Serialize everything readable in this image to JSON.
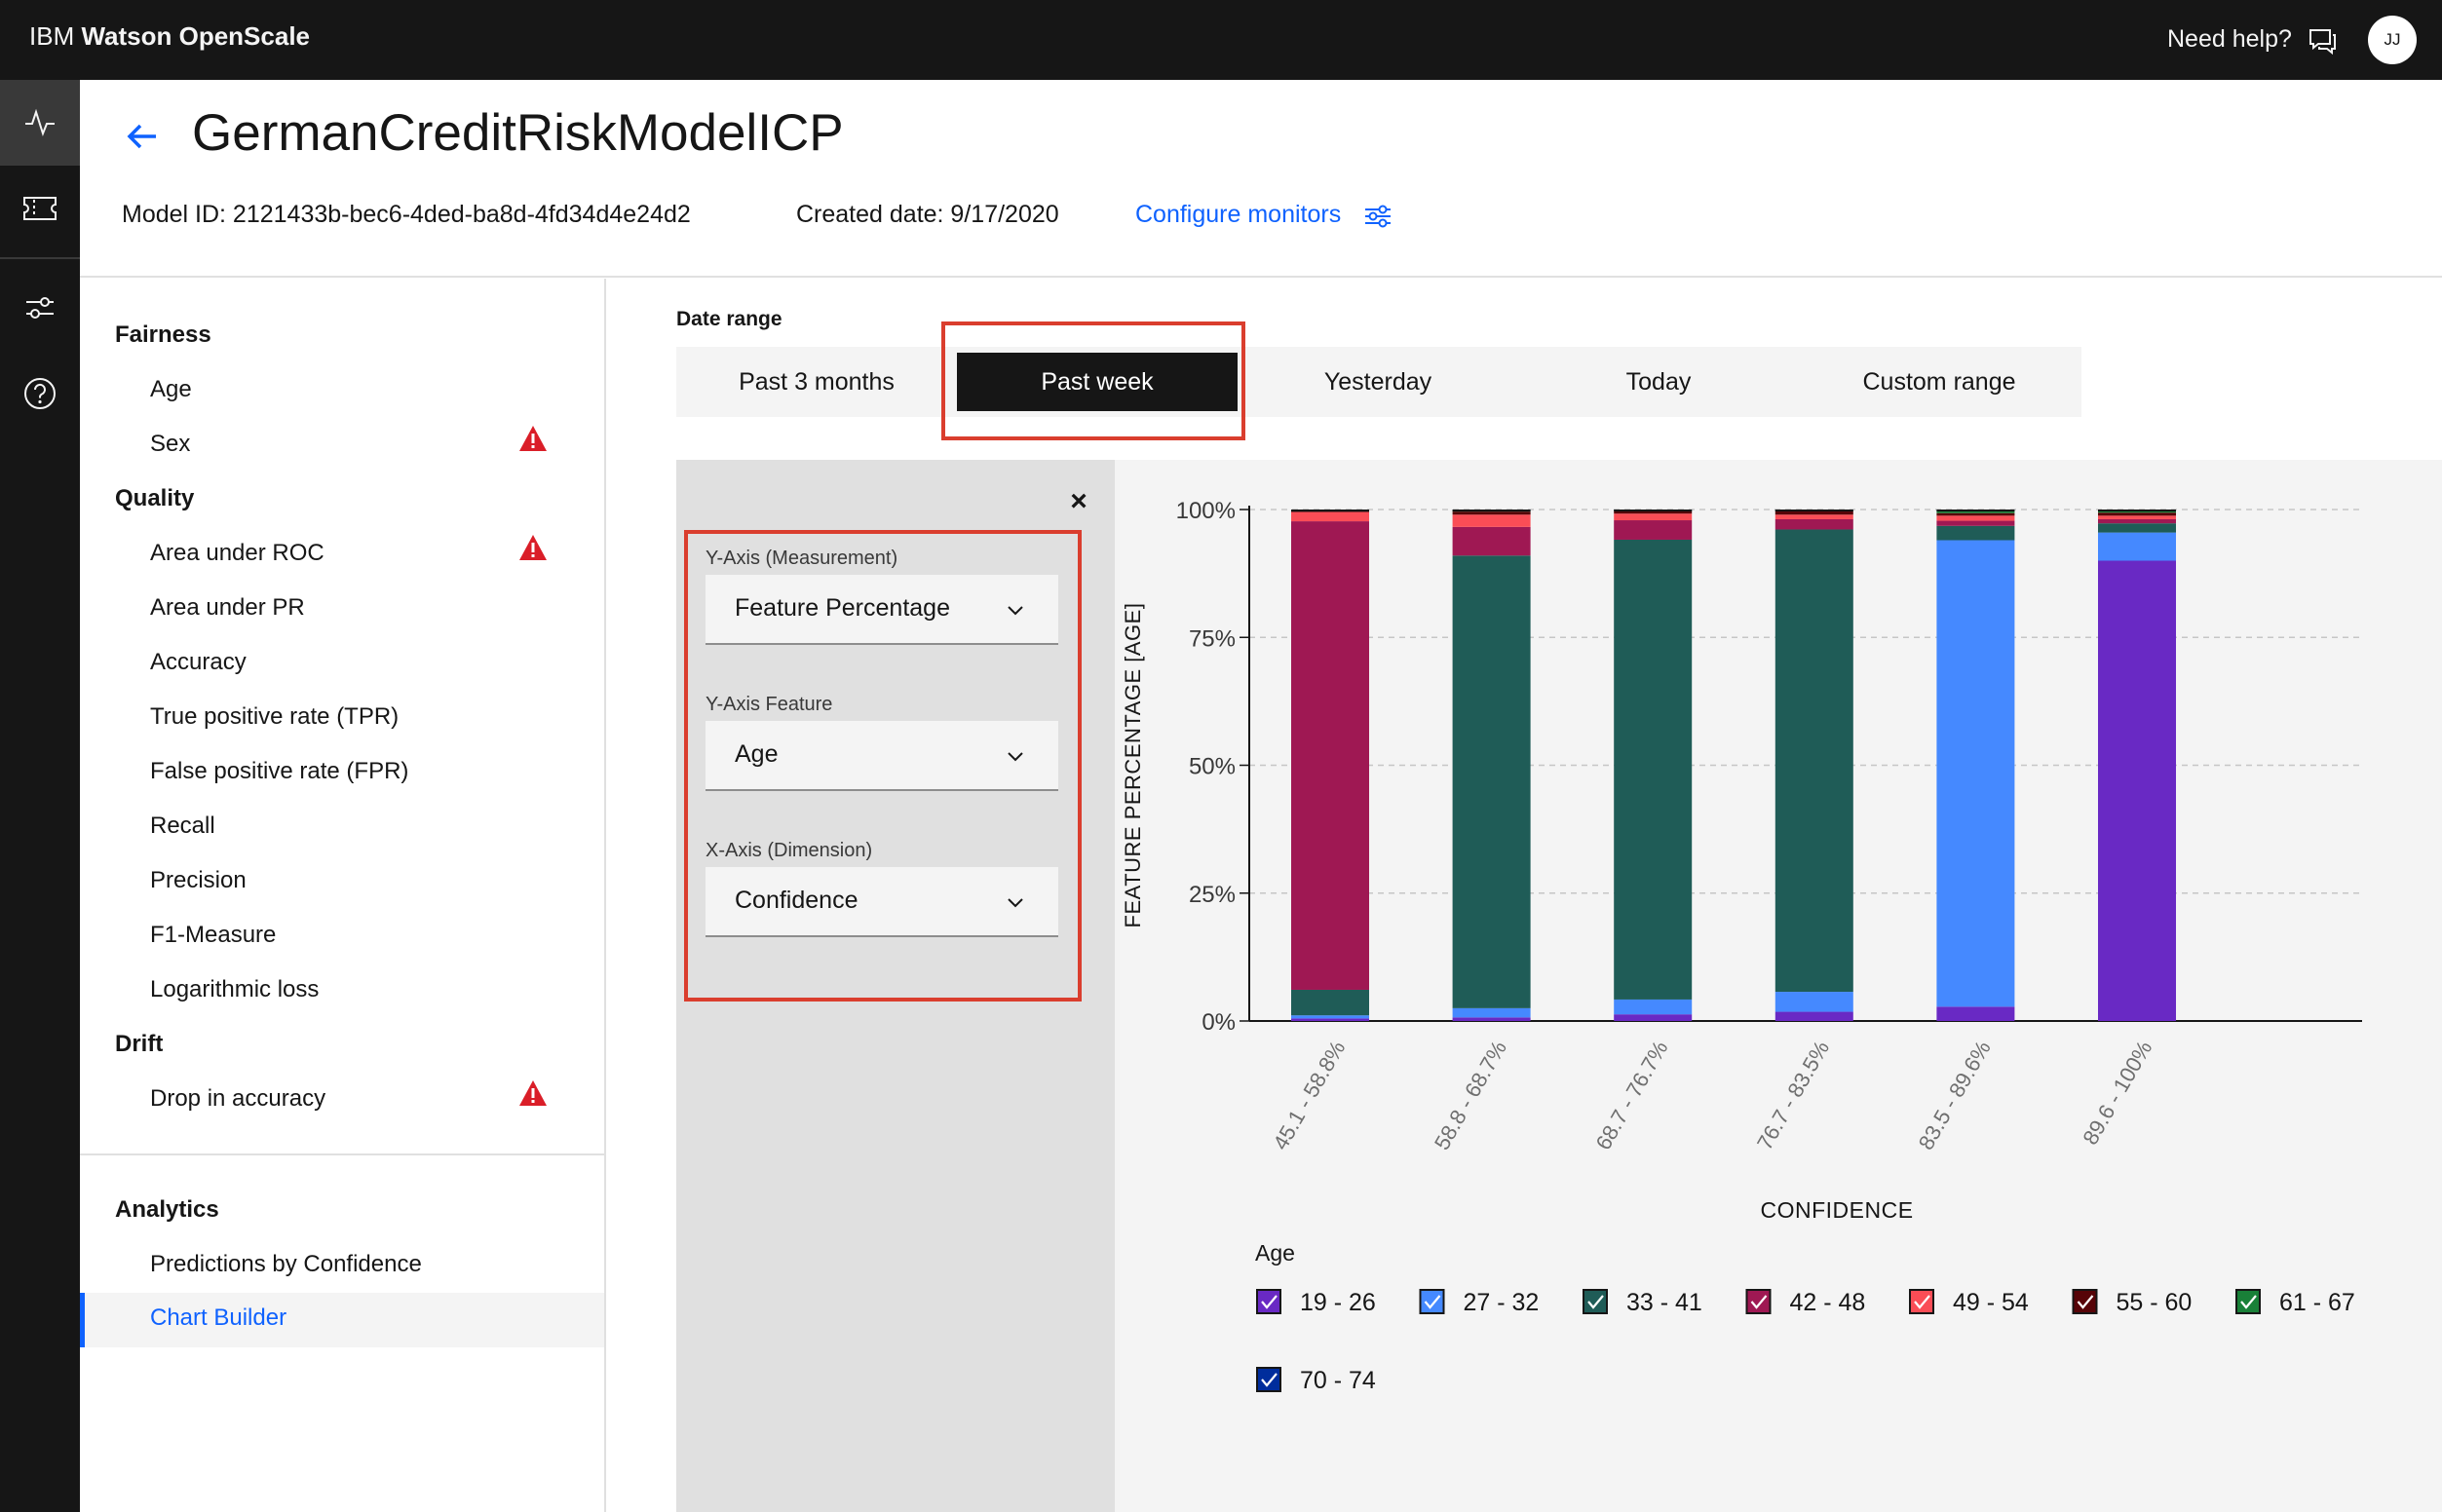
{
  "topbar": {
    "brand_prefix": "IBM",
    "brand_name": "Watson OpenScale",
    "help_label": "Need help?",
    "avatar_initials": "JJ",
    "help_icon": "chat-icon"
  },
  "rail": {
    "icons": [
      "activity-icon",
      "ticket-icon",
      "settings-sliders-icon",
      "help-icon"
    ]
  },
  "header": {
    "title": "GermanCreditRiskModelICP",
    "model_id": "Model ID: 2121433b-bec6-4ded-ba8d-4fd34d4e24d2",
    "created": "Created date: 9/17/2020",
    "configure": "Configure monitors"
  },
  "nav": {
    "fairness": {
      "title": "Fairness",
      "items": [
        "Age",
        "Sex"
      ]
    },
    "quality": {
      "title": "Quality",
      "items": [
        "Area under ROC",
        "Area under PR",
        "Accuracy",
        "True positive rate (TPR)",
        "False positive rate (FPR)",
        "Recall",
        "Precision",
        "F1-Measure",
        "Logarithmic loss"
      ]
    },
    "drift": {
      "title": "Drift",
      "items": [
        "Drop in accuracy"
      ]
    },
    "analytics": {
      "title": "Analytics",
      "items": [
        "Predictions by Confidence",
        "Chart Builder"
      ]
    }
  },
  "date_range": {
    "label": "Date range",
    "tabs": [
      "Past 3 months",
      "Past week",
      "Yesterday",
      "Today",
      "Custom range"
    ],
    "selected": "Past week"
  },
  "panel": {
    "close": "×",
    "y_measure_label": "Y-Axis (Measurement)",
    "y_measure_value": "Feature Percentage",
    "y_feature_label": "Y-Axis Feature",
    "y_feature_value": "Age",
    "x_dim_label": "X-Axis (Dimension)",
    "x_dim_value": "Confidence"
  },
  "colors": {
    "accent": "#0f62fe",
    "highlight": "#da3e2e",
    "warning": "#da1e28"
  },
  "chart_data": {
    "type": "bar",
    "stacked": true,
    "ylabel": "FEATURE PERCENTAGE [AGE]",
    "xlabel": "CONFIDENCE",
    "ylim": [
      0,
      100
    ],
    "yticks": [
      "0%",
      "25%",
      "50%",
      "75%",
      "100%"
    ],
    "categories": [
      "45.1 - 58.8%",
      "58.8 - 68.7%",
      "68.7 - 76.7%",
      "76.7 - 83.5%",
      "83.5 - 89.6%",
      "89.6 - 100%"
    ],
    "legend_title": "Age",
    "series": [
      {
        "name": "19 - 26",
        "color": "#6929c4",
        "values": [
          0.5,
          0.7,
          1.3,
          1.8,
          2.8,
          90
        ]
      },
      {
        "name": "27 - 32",
        "color": "#4589ff",
        "values": [
          0.6,
          1.8,
          2.9,
          3.9,
          91.2,
          5.5
        ]
      },
      {
        "name": "33 - 41",
        "color": "#1f5c57",
        "values": [
          5.0,
          88.5,
          89.9,
          90.4,
          2.8,
          1.8
        ]
      },
      {
        "name": "42 - 48",
        "color": "#9f1853",
        "values": [
          91.6,
          5.6,
          3.8,
          2.0,
          1.0,
          0.8
        ]
      },
      {
        "name": "49 - 54",
        "color": "#fa4d56",
        "values": [
          1.8,
          2.4,
          1.3,
          0.9,
          1.0,
          0.7
        ]
      },
      {
        "name": "55 - 60",
        "color": "#570408",
        "values": [
          0.5,
          0.6,
          0.5,
          0.7,
          0.5,
          0.6
        ]
      },
      {
        "name": "61 - 67",
        "color": "#198038",
        "values": [
          0,
          0.2,
          0.2,
          0.2,
          0.5,
          0.4
        ]
      },
      {
        "name": "70 - 74",
        "color": "#002d9c",
        "values": [
          0,
          0.2,
          0.1,
          0.1,
          0.2,
          0.2
        ]
      }
    ]
  }
}
